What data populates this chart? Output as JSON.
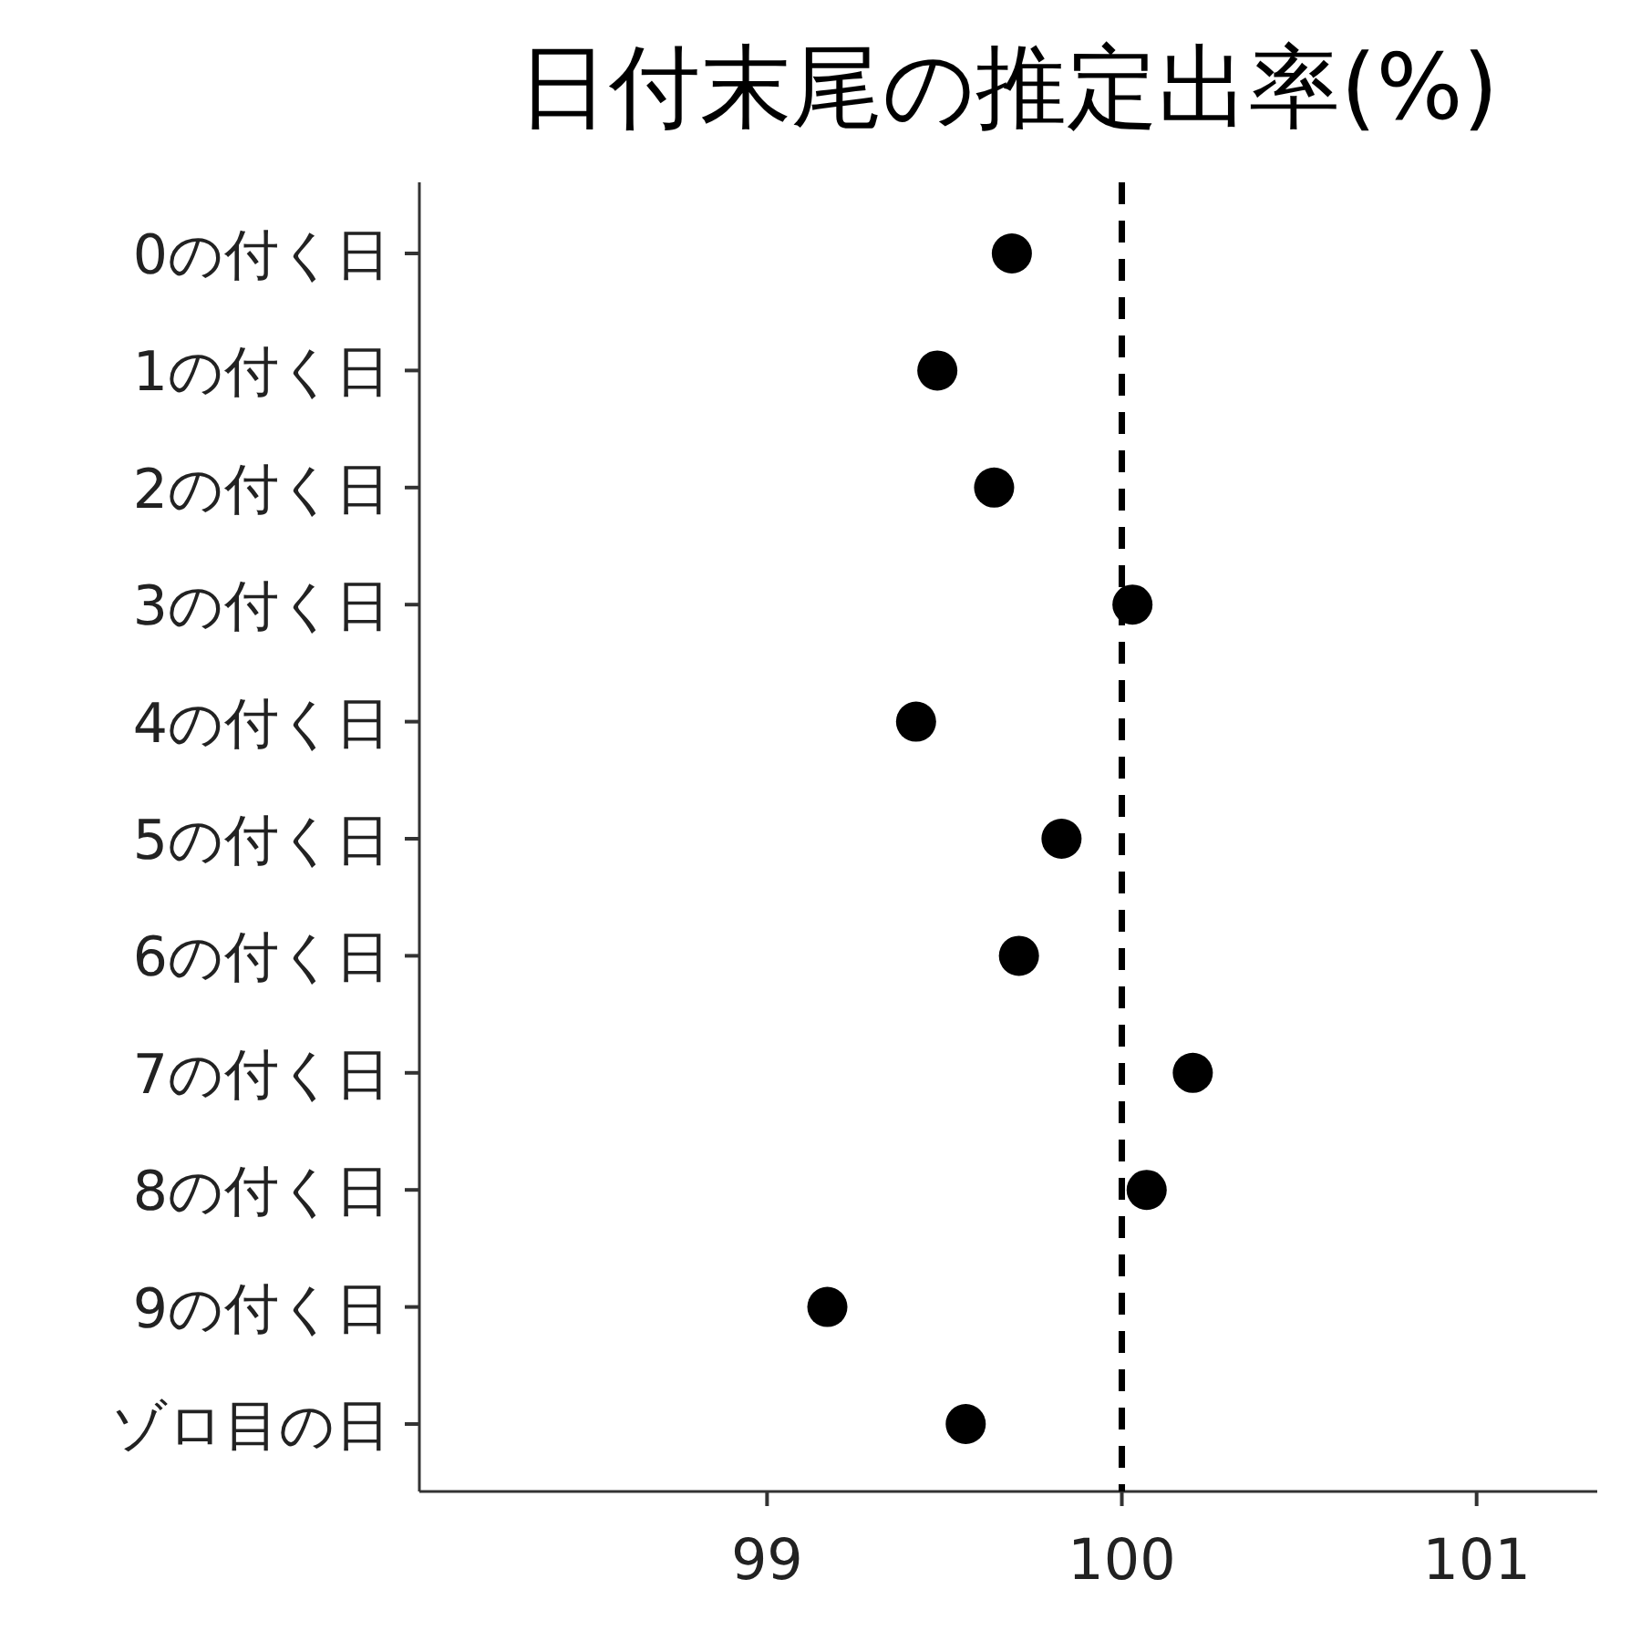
{
  "chart_data": {
    "type": "scatter",
    "title": "日付末尾の推定出率(%)",
    "orientation": "horizontal",
    "categories": [
      "0の付く日",
      "1の付く日",
      "2の付く日",
      "3の付く日",
      "4の付く日",
      "5の付く日",
      "6の付く日",
      "7の付く日",
      "8の付く日",
      "9の付く日",
      "ゾロ目の日"
    ],
    "series": [
      {
        "color": "#000000",
        "values": [
          99.69,
          99.48,
          99.64,
          100.03,
          99.42,
          99.83,
          99.71,
          100.2,
          100.07,
          99.17,
          99.56
        ]
      }
    ],
    "xlim": [
      98.02,
      101.34
    ],
    "xticks": [
      99,
      100,
      101
    ],
    "marker": "circle",
    "grid": false,
    "ref_lines": [
      {
        "axis": "x",
        "value": 100,
        "label": null,
        "color": "#000000",
        "line_style": "dashed"
      }
    ]
  }
}
